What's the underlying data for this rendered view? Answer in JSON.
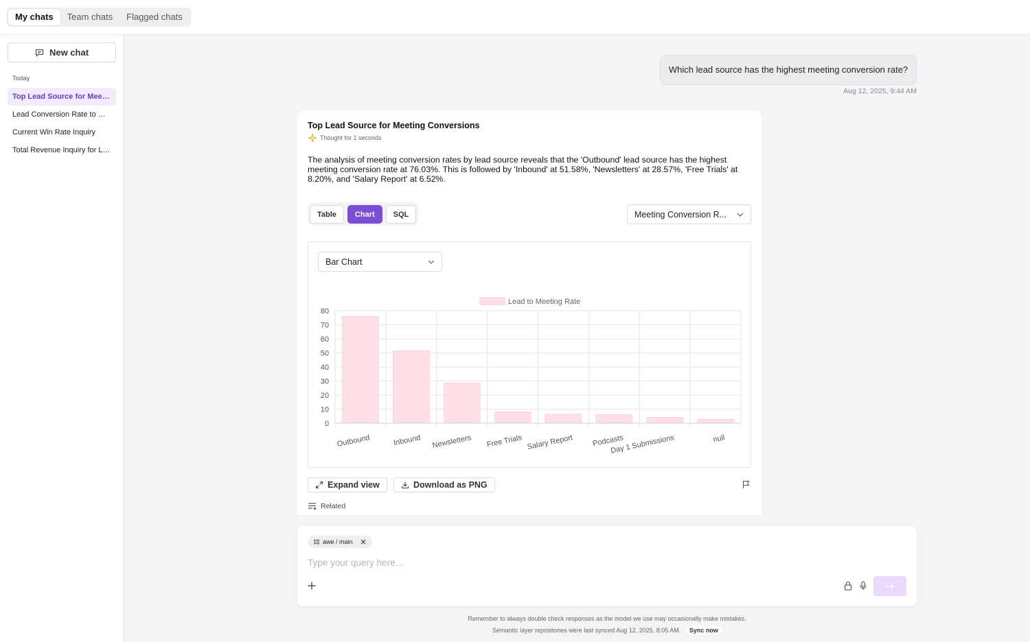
{
  "top_tabs": [
    {
      "label": "My chats",
      "active": true
    },
    {
      "label": "Team chats",
      "active": false
    },
    {
      "label": "Flagged chats",
      "active": false
    }
  ],
  "sidebar": {
    "new_chat_label": "New chat",
    "section_label": "Today",
    "items": [
      {
        "label": "Top Lead Source for Meeting Conversions",
        "active": true
      },
      {
        "label": "Lead Conversion Rate to Opportunity",
        "active": false
      },
      {
        "label": "Current Win Rate Inquiry",
        "active": false
      },
      {
        "label": "Total Revenue Inquiry for Last Quarter",
        "active": false
      }
    ]
  },
  "conversation": {
    "user_message": "Which lead source has the highest meeting conversion rate?",
    "user_timestamp": "Aug 12, 2025, 9:44 AM",
    "answer_title": "Top Lead Source for Meeting Conversions",
    "thought_label": "Thought for 1 seconds",
    "summary": "The analysis of meeting conversion rates by lead source reveals that the 'Outbound' lead source has the highest meeting conversion rate at 76.03%. This is followed by 'Inbound' at 51.58%, 'Newsletters' at 28.57%, 'Free Trials' at 8.20%, and 'Salary Report' at 6.52%."
  },
  "view_tabs": [
    {
      "label": "Table",
      "active": false
    },
    {
      "label": "Chart",
      "active": true
    },
    {
      "label": "SQL",
      "active": false
    }
  ],
  "metric_select": "Meeting Conversion R...",
  "chart_type_select": "Bar Chart",
  "actions": {
    "expand_label": "Expand view",
    "download_label": "Download as PNG",
    "related_label": "Related"
  },
  "composer": {
    "branch_chip": "awe / main",
    "placeholder": "Type your query here..."
  },
  "footer": {
    "disclaimer": "Remember to always double check responses as the model we use may occasionally make mistakes.",
    "sync_text": "Semantic layer repositories were last synced Aug 12, 2025, 8:05 AM.",
    "sync_button": "Sync now"
  },
  "colors": {
    "accent": "#7b4fd8",
    "bar_fill": "#ffe0e6",
    "bar_stroke": "#ffc4d0"
  },
  "chart_data": {
    "type": "bar",
    "categories": [
      "Outbound",
      "Inbound",
      "Newsletters",
      "Free Trials",
      "Salary Report",
      "Podcasts",
      "Day 1 Submissions",
      "null"
    ],
    "series": [
      {
        "name": "Lead to Meeting Rate",
        "values": [
          76.03,
          51.58,
          28.57,
          8.2,
          6.52,
          6.3,
          4.2,
          2.8
        ]
      }
    ],
    "ylim": [
      0,
      80
    ],
    "yticks": [
      0,
      10,
      20,
      30,
      40,
      50,
      60,
      70,
      80
    ],
    "grid": true,
    "legend": "top-center"
  }
}
